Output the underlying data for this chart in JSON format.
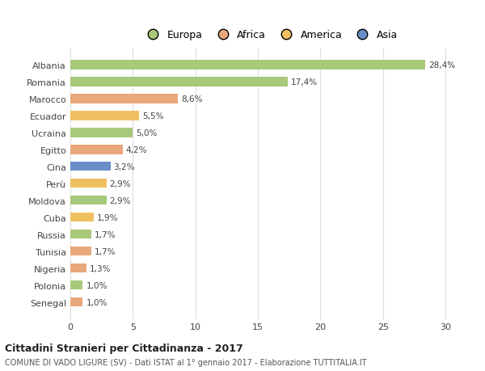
{
  "categories": [
    "Albania",
    "Romania",
    "Marocco",
    "Ecuador",
    "Ucraina",
    "Egitto",
    "Cina",
    "Perù",
    "Moldova",
    "Cuba",
    "Russia",
    "Tunisia",
    "Nigeria",
    "Polonia",
    "Senegal"
  ],
  "values": [
    28.4,
    17.4,
    8.6,
    5.5,
    5.0,
    4.2,
    3.2,
    2.9,
    2.9,
    1.9,
    1.7,
    1.7,
    1.3,
    1.0,
    1.0
  ],
  "labels": [
    "28,4%",
    "17,4%",
    "8,6%",
    "5,5%",
    "5,0%",
    "4,2%",
    "3,2%",
    "2,9%",
    "2,9%",
    "1,9%",
    "1,7%",
    "1,7%",
    "1,3%",
    "1,0%",
    "1,0%"
  ],
  "colors": [
    "#a8c87a",
    "#a8c87a",
    "#e8a87c",
    "#f0c060",
    "#a8c87a",
    "#e8a87c",
    "#6a8fc8",
    "#f0c060",
    "#a8c87a",
    "#f0c060",
    "#a8c87a",
    "#e8a87c",
    "#e8a87c",
    "#a8c87a",
    "#e8a87c"
  ],
  "legend_labels": [
    "Europa",
    "Africa",
    "America",
    "Asia"
  ],
  "legend_colors": [
    "#a8c87a",
    "#e8a87c",
    "#f0c060",
    "#6a8fc8"
  ],
  "title": "Cittadini Stranieri per Cittadinanza - 2017",
  "subtitle": "COMUNE DI VADO LIGURE (SV) - Dati ISTAT al 1° gennaio 2017 - Elaborazione TUTTITALIA.IT",
  "xlim": [
    0,
    32
  ],
  "xticks": [
    0,
    5,
    10,
    15,
    20,
    25,
    30
  ],
  "background_color": "#ffffff",
  "grid_color": "#dddddd"
}
